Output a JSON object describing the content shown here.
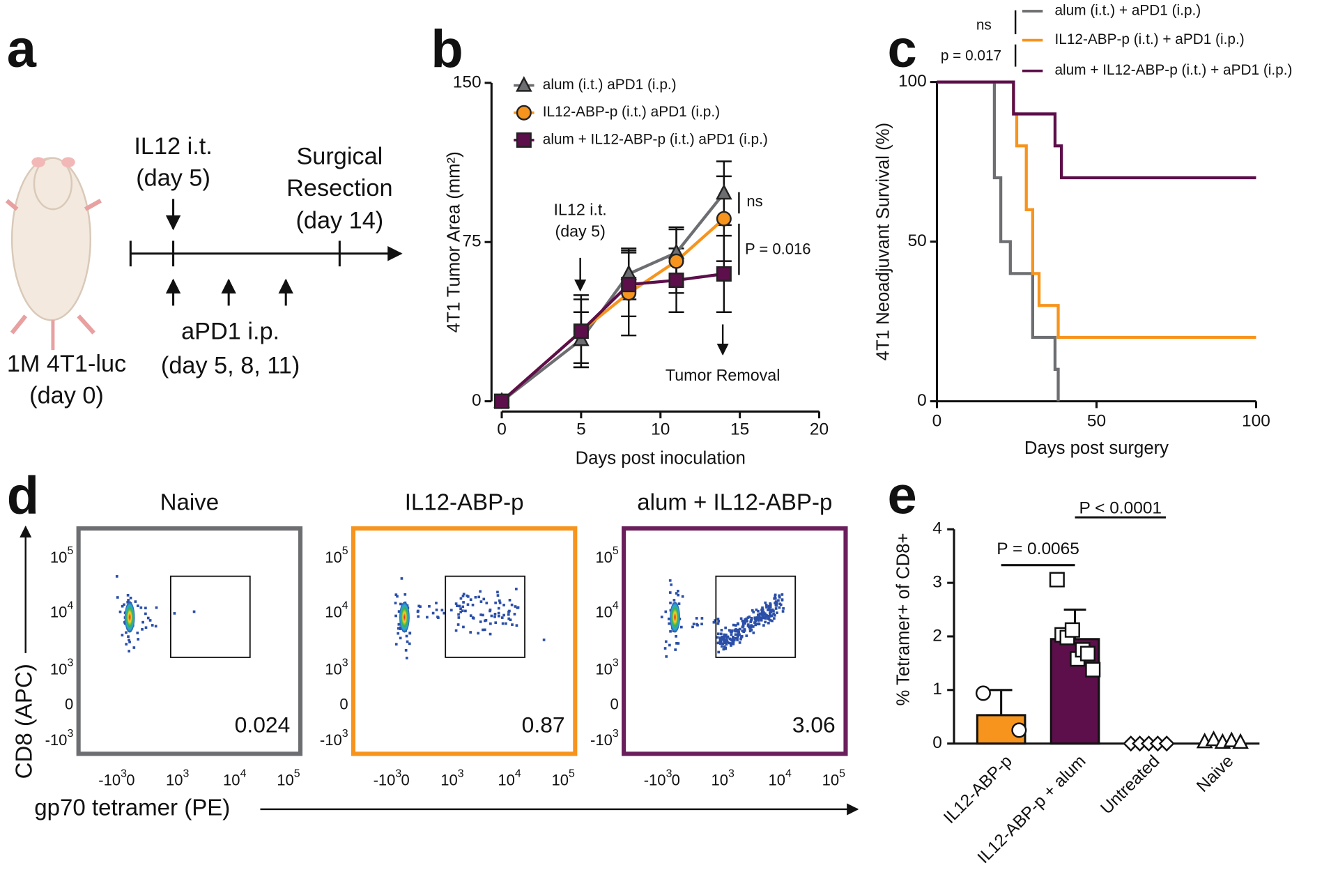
{
  "panel_labels": [
    "a",
    "b",
    "c",
    "d",
    "e"
  ],
  "schematic": {
    "injection": [
      "IL12 i.t.",
      "(day 5)"
    ],
    "surgery": [
      "Surgical",
      "Resection",
      "(day 14)"
    ],
    "treatment": [
      "aPD1 i.p.",
      "(day 5, 8, 11)"
    ],
    "inoculation": [
      "1M 4T1-luc",
      "(day 0)"
    ]
  },
  "chart_data": [
    {
      "type": "line",
      "xlabel": "Days post inoculation",
      "ylabel": "4T1 Tumor Area (mm²)",
      "x": [
        0,
        5,
        8,
        11,
        14
      ],
      "xlim": [
        0,
        20
      ],
      "xticks": [
        0,
        5,
        10,
        15,
        20
      ],
      "ylim": [
        0,
        150
      ],
      "yticks": [
        0,
        75,
        150
      ],
      "series": [
        {
          "name": "alum (i.t.) aPD1 (i.p.)",
          "color": "#6d6e71",
          "marker": "triangle",
          "values": [
            0,
            29,
            60,
            70,
            98
          ],
          "errors": [
            0,
            13,
            12,
            12,
            15
          ]
        },
        {
          "name": "IL12-ABP-p (i.t.) aPD1 (i.p.)",
          "color": "#f7941d",
          "marker": "circle",
          "values": [
            0,
            33,
            51,
            66,
            86
          ],
          "errors": [
            0,
            17,
            20,
            15,
            20
          ]
        },
        {
          "name": "alum + IL12-ABP-p (i.t.) aPD1 (i.p.)",
          "color": "#5c0f4a",
          "marker": "square",
          "values": [
            0,
            33,
            55,
            57,
            60
          ],
          "errors": [
            0,
            15,
            15,
            15,
            18
          ]
        }
      ],
      "annotations": [
        "IL12 i.t.",
        "(day 5)",
        "Tumor Removal",
        "ns",
        "P = 0.016"
      ]
    },
    {
      "type": "step",
      "xlabel": "Days post surgery",
      "ylabel": "4T1 Neoadjuvant Survival (%)",
      "xlim": [
        0,
        100
      ],
      "xticks": [
        0,
        50,
        100
      ],
      "ylim": [
        0,
        100
      ],
      "yticks": [
        0,
        50,
        100
      ],
      "series": [
        {
          "name": "alum (i.t.) + aPD1 (i.p.)",
          "color": "#6d6e71",
          "x": [
            0,
            18,
            20,
            23,
            30,
            37,
            38
          ],
          "values": [
            100,
            70,
            50,
            40,
            20,
            10,
            0
          ]
        },
        {
          "name": "IL12-ABP-p (i.t.) + aPD1 (i.p.)",
          "color": "#f7941d",
          "x": [
            0,
            24,
            25,
            28,
            30,
            32,
            38,
            100
          ],
          "values": [
            100,
            90,
            80,
            60,
            40,
            30,
            20,
            20
          ]
        },
        {
          "name": "alum + IL12-ABP-p (i.t.) + aPD1 (i.p.)",
          "color": "#5c0f4a",
          "x": [
            0,
            24,
            37,
            39,
            100
          ],
          "values": [
            100,
            90,
            80,
            70,
            70
          ]
        }
      ],
      "annotations": [
        "ns",
        "p = 0.017"
      ]
    },
    {
      "type": "bar",
      "ylabel": "% Tetramer+ of CD8+",
      "categories": [
        "IL12-ABP-p",
        "IL12-ABP-p + alum",
        "Untreated",
        "Naive"
      ],
      "values": [
        0.53,
        1.95,
        0,
        0
      ],
      "errors": [
        0.47,
        0.55,
        0,
        0
      ],
      "colors": [
        "#f7941d",
        "#5c0f4a",
        "#ffffff",
        "#ffffff"
      ],
      "markers": [
        "circle",
        "square",
        "diamond",
        "triangle"
      ],
      "points": [
        [
          0.94,
          0.25
        ],
        [
          3.06,
          2.03,
          1.98,
          2.12,
          1.58,
          1.75,
          1.68,
          1.38
        ],
        [
          0,
          0,
          0,
          0,
          0
        ],
        [
          0.03,
          0.07,
          0.02,
          0.05,
          0.02
        ]
      ],
      "ylim": [
        0,
        4
      ],
      "yticks": [
        0,
        1,
        2,
        3,
        4
      ],
      "annotations": [
        "P = 0.0065",
        "P < 0.0001"
      ]
    }
  ],
  "flow": {
    "ylabel": "CD8 (APC)",
    "xlabel": "gp70 tetramer (PE)",
    "yticks": [
      {
        "base": "10",
        "exp": "5"
      },
      {
        "base": "10",
        "exp": "4"
      },
      {
        "base": "10",
        "exp": "3"
      },
      {
        "base": "0"
      },
      {
        "base": "-10",
        "exp": "3"
      }
    ],
    "xticks": [
      {
        "base": "-10",
        "exp": "3"
      },
      {
        "base": "0"
      },
      {
        "base": "10",
        "exp": "3"
      },
      {
        "base": "10",
        "exp": "4"
      },
      {
        "base": "10",
        "exp": "5"
      }
    ],
    "panels": [
      {
        "title": "Naive",
        "color": "#6d6e71",
        "gate_percent": 0.024
      },
      {
        "title": "IL12-ABP-p",
        "color": "#f7941d",
        "gate_percent": 0.87
      },
      {
        "title": "alum + IL12-ABP-p",
        "color": "#6b1e5c",
        "gate_percent": 3.06
      }
    ]
  }
}
